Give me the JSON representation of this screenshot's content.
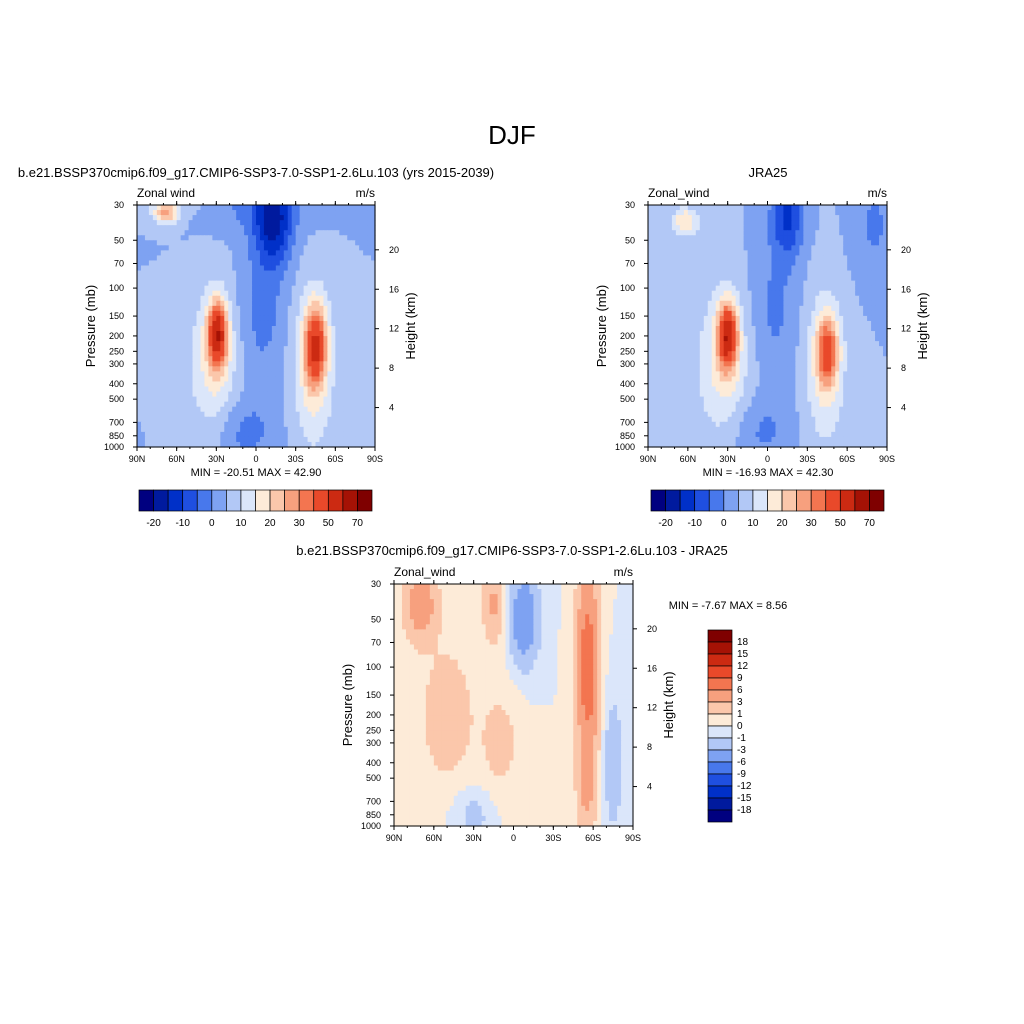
{
  "figure": {
    "title": "DJF"
  },
  "colors": {
    "model_levels": [
      "#000080",
      "#001a9e",
      "#0030c8",
      "#1f4fe0",
      "#4878ec",
      "#7ea2f2",
      "#b2c8f6",
      "#dbe6fa",
      "#fdebd8",
      "#fbc7ab",
      "#f7a07e",
      "#f37550",
      "#e9492a",
      "#cc2a12",
      "#a51205",
      "#7f0000"
    ],
    "diff_levels": [
      "#000080",
      "#001a9e",
      "#0030c8",
      "#1f4fe0",
      "#4878ec",
      "#7ea2f2",
      "#b2c8f6",
      "#dbe6fa",
      "#fdebd8",
      "#fbc7ab",
      "#f7a07e",
      "#f37550",
      "#e9492a",
      "#cc2a12",
      "#a51205",
      "#7f0000"
    ]
  },
  "chart_data": [
    {
      "id": "model",
      "type": "heatmap",
      "title": "b.e21.BSSP370cmip6.f09_g17.CMIP6-SSP3-7.0-SSP1-2.6Lu.103 (yrs 2015-2039)",
      "left_label": "Zonal wind",
      "right_label": "m/s",
      "ylabel": "Pressure (mb)",
      "y2label": "Height (km)",
      "x_ticks": [
        "90N",
        "60N",
        "30N",
        "0",
        "30S",
        "60S",
        "90S"
      ],
      "x_values": [
        90,
        60,
        30,
        0,
        -30,
        -60,
        -90
      ],
      "y_ticks": [
        "30",
        "50",
        "70",
        "100",
        "150",
        "200",
        "250",
        "300",
        "400",
        "500",
        "700",
        "850",
        "1000"
      ],
      "y_values": [
        30,
        50,
        70,
        100,
        150,
        200,
        250,
        300,
        400,
        500,
        700,
        850,
        1000
      ],
      "y2_ticks": [
        "20",
        "16",
        "12",
        "8",
        "4"
      ],
      "y2_values": [
        20,
        16,
        12,
        8,
        4
      ],
      "ylim": [
        1000,
        30
      ],
      "xlim": [
        90,
        -90
      ],
      "min_text": "MIN = -20.51  MAX =  42.90",
      "colorbar_labels": [
        "-20",
        "-10",
        "0",
        "10",
        "20",
        "30",
        "50",
        "70"
      ],
      "features": [
        {
          "lat": 68,
          "p": 33,
          "v": 22,
          "sl": 10,
          "sp": 0.18
        },
        {
          "lat": 38,
          "p": 30,
          "v": 2,
          "sl": 14,
          "sp": 0.25
        },
        {
          "lat": 29,
          "p": 195,
          "v": 42,
          "sl": 7,
          "sp": 0.45
        },
        {
          "lat": 32,
          "p": 300,
          "v": 12,
          "sl": 18,
          "sp": 1.1
        },
        {
          "lat": -45,
          "p": 230,
          "v": 34,
          "sl": 8,
          "sp": 0.55
        },
        {
          "lat": -43,
          "p": 320,
          "v": 12,
          "sl": 16,
          "sp": 1.2
        },
        {
          "lat": -13,
          "p": 40,
          "v": -20,
          "sl": 14,
          "sp": 0.6
        },
        {
          "lat": -5,
          "p": 140,
          "v": -7,
          "sl": 18,
          "sp": 1.0
        },
        {
          "lat": 10,
          "p": 800,
          "v": -7,
          "sl": 25,
          "sp": 0.5
        },
        {
          "lat": 0,
          "p": 30,
          "v": -6,
          "sl": 40,
          "sp": 0.4
        }
      ]
    },
    {
      "id": "obs",
      "type": "heatmap",
      "title": "JRA25",
      "left_label": "Zonal_wind",
      "right_label": "m/s",
      "ylabel": "Pressure (mb)",
      "y2label": "Height (km)",
      "x_ticks": [
        "90N",
        "60N",
        "30N",
        "0",
        "30S",
        "60S",
        "90S"
      ],
      "x_values": [
        90,
        60,
        30,
        0,
        -30,
        -60,
        -90
      ],
      "y_ticks": [
        "30",
        "50",
        "70",
        "100",
        "150",
        "200",
        "250",
        "300",
        "400",
        "500",
        "700",
        "850",
        "1000"
      ],
      "y_values": [
        30,
        50,
        70,
        100,
        150,
        200,
        250,
        300,
        400,
        500,
        700,
        850,
        1000
      ],
      "y2_ticks": [
        "20",
        "16",
        "12",
        "8",
        "4"
      ],
      "y2_values": [
        20,
        16,
        12,
        8,
        4
      ],
      "ylim": [
        1000,
        30
      ],
      "xlim": [
        90,
        -90
      ],
      "min_text": "MIN = -16.93  MAX =  42.30",
      "colorbar_labels": [
        "-20",
        "-10",
        "0",
        "10",
        "20",
        "30",
        "50",
        "70"
      ],
      "features": [
        {
          "lat": 62,
          "p": 38,
          "v": 15,
          "sl": 10,
          "sp": 0.2
        },
        {
          "lat": 30,
          "p": 200,
          "v": 42,
          "sl": 7,
          "sp": 0.45
        },
        {
          "lat": 33,
          "p": 300,
          "v": 12,
          "sl": 20,
          "sp": 1.1
        },
        {
          "lat": -45,
          "p": 250,
          "v": 28,
          "sl": 8,
          "sp": 0.5
        },
        {
          "lat": -43,
          "p": 330,
          "v": 10,
          "sl": 16,
          "sp": 1.2
        },
        {
          "lat": -15,
          "p": 35,
          "v": -16,
          "sl": 12,
          "sp": 0.6
        },
        {
          "lat": -5,
          "p": 140,
          "v": -6,
          "sl": 18,
          "sp": 1.0
        },
        {
          "lat": 5,
          "p": 800,
          "v": -6,
          "sl": 25,
          "sp": 0.5
        },
        {
          "lat": -80,
          "p": 40,
          "v": -6,
          "sl": 15,
          "sp": 0.7
        }
      ]
    },
    {
      "id": "diff",
      "type": "heatmap",
      "title": "b.e21.BSSP370cmip6.f09_g17.CMIP6-SSP3-7.0-SSP1-2.6Lu.103 - JRA25",
      "left_label": "Zonal_wind",
      "right_label": "m/s",
      "ylabel": "Pressure (mb)",
      "y2label": "Height (km)",
      "x_ticks": [
        "90N",
        "60N",
        "30N",
        "0",
        "30S",
        "60S",
        "90S"
      ],
      "x_values": [
        90,
        60,
        30,
        0,
        -30,
        -60,
        -90
      ],
      "y_ticks": [
        "30",
        "50",
        "70",
        "100",
        "150",
        "200",
        "250",
        "300",
        "400",
        "500",
        "700",
        "850",
        "1000"
      ],
      "y_values": [
        30,
        50,
        70,
        100,
        150,
        200,
        250,
        300,
        400,
        500,
        700,
        850,
        1000
      ],
      "y2_ticks": [
        "20",
        "16",
        "12",
        "8",
        "4"
      ],
      "y2_values": [
        20,
        16,
        12,
        8,
        4
      ],
      "ylim": [
        1000,
        30
      ],
      "xlim": [
        90,
        -90
      ],
      "min_text": "MIN =  -7.67  MAX =   8.56",
      "colorbar_labels": [
        "18",
        "15",
        "12",
        "9",
        "6",
        "3",
        "1",
        "0",
        "-1",
        "-3",
        "-6",
        "-9",
        "-12",
        "-15",
        "-18"
      ],
      "features": [
        {
          "lat": 70,
          "p": 40,
          "v": 5,
          "sl": 12,
          "sp": 0.5
        },
        {
          "lat": 15,
          "p": 40,
          "v": 3.5,
          "sl": 8,
          "sp": 0.5
        },
        {
          "lat": -56,
          "p": 100,
          "v": 8.5,
          "sl": 8,
          "sp": 1.3
        },
        {
          "lat": -55,
          "p": 600,
          "v": 3,
          "sl": 7,
          "sp": 0.6
        },
        {
          "lat": -8,
          "p": 50,
          "v": -6,
          "sl": 10,
          "sp": 0.6
        },
        {
          "lat": 50,
          "p": 200,
          "v": 2,
          "sl": 20,
          "sp": 1.0
        },
        {
          "lat": 30,
          "p": 850,
          "v": -1.5,
          "sl": 15,
          "sp": 0.4
        },
        {
          "lat": -75,
          "p": 400,
          "v": -2,
          "sl": 8,
          "sp": 1.0
        },
        {
          "lat": 10,
          "p": 300,
          "v": 1.5,
          "sl": 15,
          "sp": 0.8
        }
      ]
    }
  ]
}
